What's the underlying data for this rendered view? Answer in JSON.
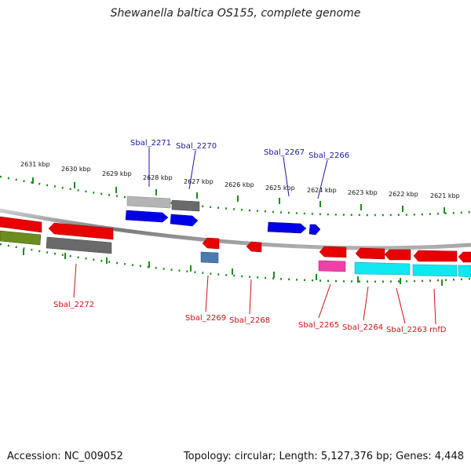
{
  "title": "Shewanella baltica OS155, complete genome",
  "footer": {
    "accession": "Accession: NC_009052",
    "summary": "Topology: circular; Length: 5,127,376 bp; Genes: 4,448"
  },
  "colors": {
    "backbone": "#8c8c8c",
    "tick": "#1e8c1e",
    "label_top": "#1a1aa6",
    "label_bottom": "#c81414",
    "cds_red": "#e80000",
    "cds_blue": "#0000e8",
    "cds_gray": "#b4b4b4",
    "cds_darkgray": "#6a6a6a",
    "cds_olive": "#6b8c1e",
    "cds_steel": "#4a7ab0",
    "cds_magenta": "#f040a8",
    "cds_cyan": "#10e8f0"
  },
  "ticks": [
    {
      "label": "2631 kbp"
    },
    {
      "label": "2630 kbp"
    },
    {
      "label": "2629 kbp"
    },
    {
      "label": "2628 kbp"
    },
    {
      "label": "2627 kbp"
    },
    {
      "label": "2626 kbp"
    },
    {
      "label": "2625 kbp"
    },
    {
      "label": "2624 kbp"
    },
    {
      "label": "2623 kbp"
    },
    {
      "label": "2622 kbp"
    },
    {
      "label": "2621 kbp"
    }
  ],
  "genes_top": [
    {
      "name": "Sbal_2271"
    },
    {
      "name": "Sbal_2270"
    },
    {
      "name": "Sbal_2267"
    },
    {
      "name": "Sbal_2266"
    }
  ],
  "genes_bottom": [
    {
      "name": "Sbal_2272"
    },
    {
      "name": "Sbal_2269"
    },
    {
      "name": "Sbal_2268"
    },
    {
      "name": "Sbal_2265"
    },
    {
      "name": "Sbal_2264"
    },
    {
      "name": "Sbal_2263"
    },
    {
      "name": "rnfD"
    }
  ]
}
